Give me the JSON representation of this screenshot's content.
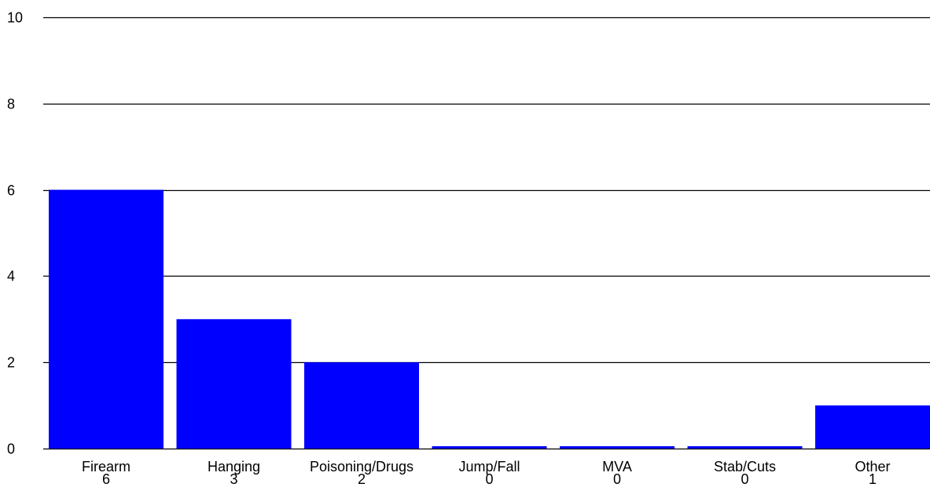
{
  "chart_data": {
    "type": "bar",
    "categories": [
      "Firearm",
      "Hanging",
      "Poisoning/Drugs",
      "Jump/Fall",
      "MVA",
      "Stab/Cuts",
      "Other"
    ],
    "values": [
      6,
      3,
      2,
      0,
      0,
      0,
      1
    ],
    "value_labels": [
      "6",
      "3",
      "2",
      "0",
      "0",
      "0",
      "1"
    ],
    "ylim": [
      0,
      10
    ],
    "yticks": [
      0,
      2,
      4,
      6,
      8,
      10
    ],
    "grid": true,
    "legend": "none",
    "title": "",
    "xlabel": "",
    "ylabel": ""
  },
  "colors": {
    "bar": "#0000ff",
    "grid": "#000000",
    "text": "#000000",
    "background": "#ffffff"
  }
}
